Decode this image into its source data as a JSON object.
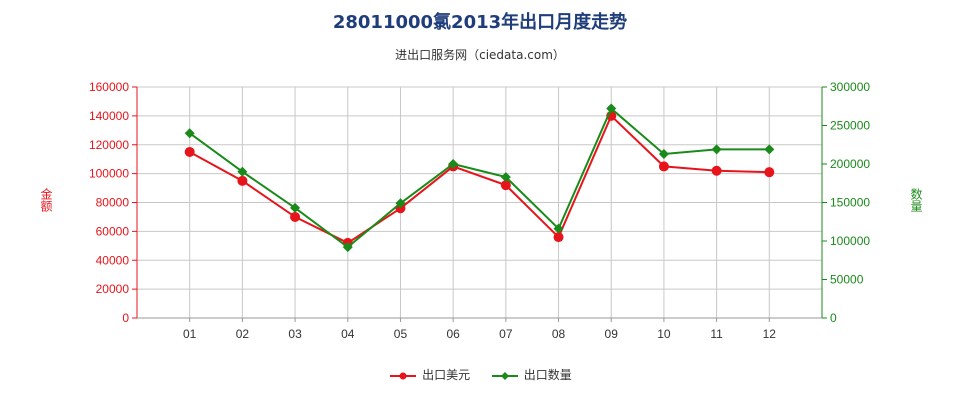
{
  "chart_data": {
    "type": "line",
    "title": "28011000氯2013年出口月度走势",
    "subtitle": "进出口服务网（ciedata.com）",
    "categories": [
      "01",
      "02",
      "03",
      "04",
      "05",
      "06",
      "07",
      "08",
      "09",
      "10",
      "11",
      "12"
    ],
    "y_left_label": "金额",
    "y_right_label": "数量",
    "y_left_lim": [
      0,
      160000
    ],
    "y_left_ticks": [
      "0",
      "20000",
      "40000",
      "60000",
      "80000",
      "100000",
      "120000",
      "140000",
      "160000"
    ],
    "y_right_lim": [
      0,
      300000
    ],
    "y_right_ticks": [
      "0",
      "50000",
      "100000",
      "150000",
      "200000",
      "250000",
      "300000"
    ],
    "grid": true,
    "legend_position": "bottom",
    "series": [
      {
        "name": "出口美元",
        "axis": "left",
        "color": "#e8141b",
        "marker": "circle",
        "values": [
          115000,
          95000,
          70000,
          52000,
          76000,
          105000,
          92000,
          56000,
          140000,
          105000,
          102000,
          101000
        ]
      },
      {
        "name": "出口数量",
        "axis": "right",
        "color": "#1a8a1a",
        "marker": "diamond",
        "values": [
          240000,
          190000,
          143000,
          92000,
          149000,
          200000,
          183000,
          116000,
          272000,
          213000,
          219000,
          219000
        ]
      }
    ]
  }
}
